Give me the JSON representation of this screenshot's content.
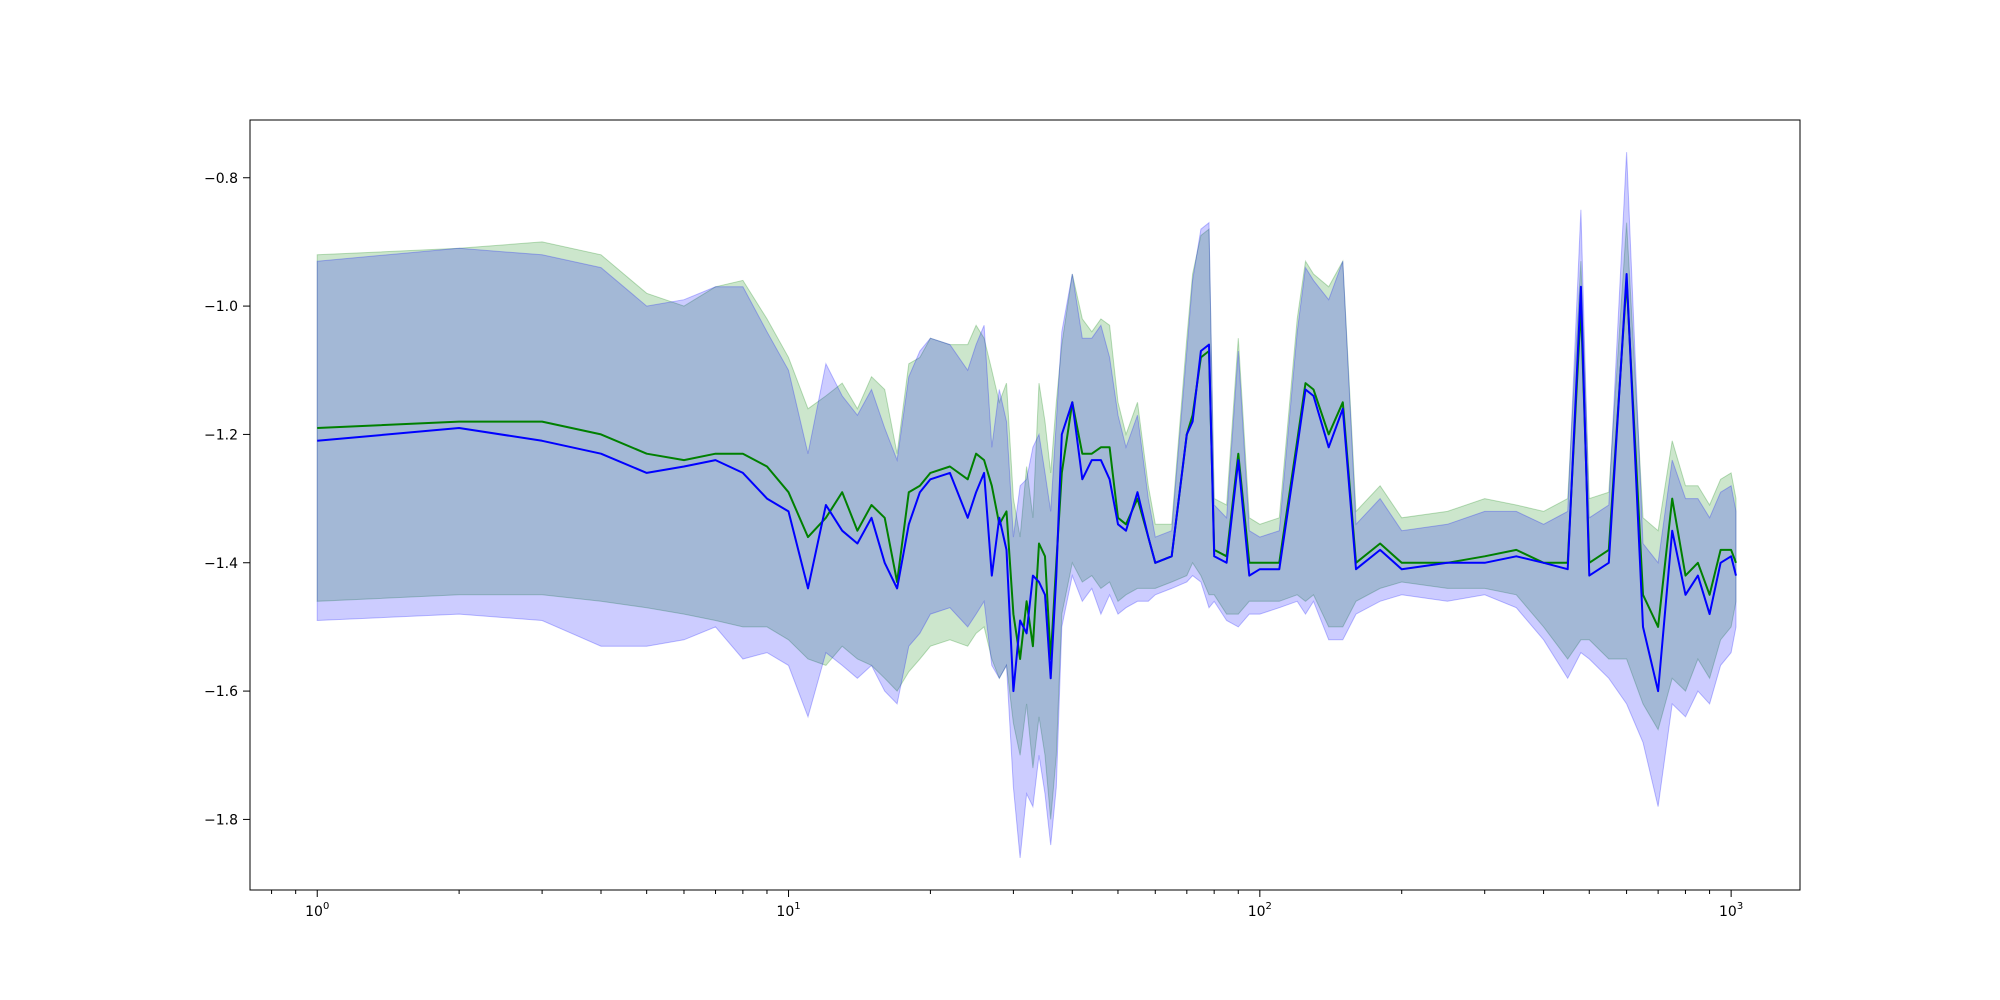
{
  "chart_data": {
    "type": "line",
    "title": "",
    "xlabel": "",
    "ylabel": "",
    "xscale": "log",
    "xlim": [
      0.72,
      1400
    ],
    "ylim": [
      -1.91,
      -0.71
    ],
    "grid": false,
    "x_ticks": [
      {
        "value": 1,
        "base": "10",
        "exp": "0"
      },
      {
        "value": 10,
        "base": "10",
        "exp": "1"
      },
      {
        "value": 100,
        "base": "10",
        "exp": "2"
      },
      {
        "value": 1000,
        "base": "10",
        "exp": "3"
      }
    ],
    "y_ticks": [
      {
        "value": -0.8,
        "label": "−0.8"
      },
      {
        "value": -1.0,
        "label": "−1.0"
      },
      {
        "value": -1.2,
        "label": "−1.2"
      },
      {
        "value": -1.4,
        "label": "−1.4"
      },
      {
        "value": -1.6,
        "label": "−1.6"
      },
      {
        "value": -1.8,
        "label": "−1.8"
      }
    ],
    "series": [
      {
        "color": "#008000",
        "band_color": "#008000",
        "band_opacity": 0.2,
        "x": [
          1,
          2,
          3,
          4,
          5,
          6,
          7,
          8,
          9,
          10,
          11,
          12,
          13,
          14,
          15,
          16,
          17,
          18,
          19,
          20,
          22,
          24,
          25,
          26,
          27,
          28,
          29,
          30,
          31,
          32,
          33,
          34,
          35,
          36,
          37,
          38,
          40,
          42,
          44,
          46,
          48,
          50,
          52,
          55,
          58,
          60,
          65,
          70,
          72,
          75,
          78,
          80,
          85,
          90,
          95,
          100,
          110,
          120,
          125,
          130,
          140,
          150,
          160,
          180,
          200,
          250,
          300,
          350,
          400,
          450,
          480,
          500,
          550,
          600,
          650,
          700,
          750,
          800,
          850,
          900,
          950,
          1000,
          1024
        ],
        "y": [
          -1.19,
          -1.18,
          -1.18,
          -1.2,
          -1.23,
          -1.24,
          -1.23,
          -1.23,
          -1.25,
          -1.29,
          -1.36,
          -1.33,
          -1.29,
          -1.35,
          -1.31,
          -1.33,
          -1.43,
          -1.29,
          -1.28,
          -1.26,
          -1.25,
          -1.27,
          -1.23,
          -1.24,
          -1.28,
          -1.34,
          -1.32,
          -1.48,
          -1.55,
          -1.46,
          -1.53,
          -1.37,
          -1.39,
          -1.55,
          -1.4,
          -1.26,
          -1.15,
          -1.23,
          -1.23,
          -1.22,
          -1.22,
          -1.33,
          -1.34,
          -1.3,
          -1.36,
          -1.4,
          -1.39,
          -1.2,
          -1.17,
          -1.08,
          -1.07,
          -1.38,
          -1.39,
          -1.23,
          -1.4,
          -1.4,
          -1.4,
          -1.21,
          -1.12,
          -1.13,
          -1.2,
          -1.15,
          -1.4,
          -1.37,
          -1.4,
          -1.4,
          -1.39,
          -1.38,
          -1.4,
          -1.4,
          -1.0,
          -1.4,
          -1.38,
          -0.96,
          -1.45,
          -1.5,
          -1.3,
          -1.42,
          -1.4,
          -1.45,
          -1.38,
          -1.38,
          -1.4
        ],
        "lower": [
          -1.46,
          -1.45,
          -1.45,
          -1.46,
          -1.47,
          -1.48,
          -1.49,
          -1.5,
          -1.5,
          -1.52,
          -1.55,
          -1.56,
          -1.53,
          -1.55,
          -1.56,
          -1.58,
          -1.6,
          -1.57,
          -1.55,
          -1.53,
          -1.52,
          -1.53,
          -1.51,
          -1.5,
          -1.55,
          -1.58,
          -1.56,
          -1.65,
          -1.7,
          -1.62,
          -1.72,
          -1.64,
          -1.7,
          -1.8,
          -1.7,
          -1.48,
          -1.4,
          -1.43,
          -1.42,
          -1.44,
          -1.43,
          -1.46,
          -1.45,
          -1.44,
          -1.44,
          -1.44,
          -1.43,
          -1.42,
          -1.4,
          -1.42,
          -1.45,
          -1.45,
          -1.48,
          -1.48,
          -1.46,
          -1.46,
          -1.46,
          -1.45,
          -1.46,
          -1.45,
          -1.5,
          -1.5,
          -1.46,
          -1.44,
          -1.43,
          -1.44,
          -1.44,
          -1.45,
          -1.5,
          -1.55,
          -1.52,
          -1.52,
          -1.55,
          -1.55,
          -1.62,
          -1.66,
          -1.58,
          -1.6,
          -1.55,
          -1.58,
          -1.52,
          -1.5,
          -1.46
        ],
        "upper": [
          -0.92,
          -0.91,
          -0.9,
          -0.92,
          -0.98,
          -1.0,
          -0.97,
          -0.96,
          -1.02,
          -1.08,
          -1.16,
          -1.14,
          -1.12,
          -1.16,
          -1.11,
          -1.13,
          -1.23,
          -1.09,
          -1.08,
          -1.05,
          -1.06,
          -1.06,
          -1.03,
          -1.05,
          -1.1,
          -1.15,
          -1.12,
          -1.3,
          -1.36,
          -1.25,
          -1.33,
          -1.12,
          -1.18,
          -1.26,
          -1.15,
          -1.06,
          -0.95,
          -1.02,
          -1.04,
          -1.02,
          -1.03,
          -1.15,
          -1.2,
          -1.15,
          -1.28,
          -1.34,
          -1.34,
          -1.05,
          -0.95,
          -0.89,
          -0.88,
          -1.3,
          -1.31,
          -1.05,
          -1.33,
          -1.34,
          -1.33,
          -1.02,
          -0.93,
          -0.95,
          -0.97,
          -0.93,
          -1.32,
          -1.28,
          -1.33,
          -1.32,
          -1.3,
          -1.31,
          -1.32,
          -1.3,
          -0.93,
          -1.3,
          -1.29,
          -0.87,
          -1.33,
          -1.35,
          -1.21,
          -1.28,
          -1.28,
          -1.31,
          -1.27,
          -1.26,
          -1.3
        ]
      },
      {
        "color": "#0000ff",
        "band_color": "#0000ff",
        "band_opacity": 0.2,
        "x": [
          1,
          2,
          3,
          4,
          5,
          6,
          7,
          8,
          9,
          10,
          11,
          12,
          13,
          14,
          15,
          16,
          17,
          18,
          19,
          20,
          22,
          24,
          25,
          26,
          27,
          28,
          29,
          30,
          31,
          32,
          33,
          34,
          35,
          36,
          37,
          38,
          40,
          42,
          44,
          46,
          48,
          50,
          52,
          55,
          58,
          60,
          65,
          70,
          72,
          75,
          78,
          80,
          85,
          90,
          95,
          100,
          110,
          120,
          125,
          130,
          140,
          150,
          160,
          180,
          200,
          250,
          300,
          350,
          400,
          450,
          480,
          500,
          550,
          600,
          650,
          700,
          750,
          800,
          850,
          900,
          950,
          1000,
          1024
        ],
        "y": [
          -1.21,
          -1.19,
          -1.21,
          -1.23,
          -1.26,
          -1.25,
          -1.24,
          -1.26,
          -1.3,
          -1.32,
          -1.44,
          -1.31,
          -1.35,
          -1.37,
          -1.33,
          -1.4,
          -1.44,
          -1.34,
          -1.29,
          -1.27,
          -1.26,
          -1.33,
          -1.29,
          -1.26,
          -1.42,
          -1.33,
          -1.38,
          -1.6,
          -1.49,
          -1.51,
          -1.42,
          -1.43,
          -1.45,
          -1.58,
          -1.42,
          -1.2,
          -1.15,
          -1.27,
          -1.24,
          -1.24,
          -1.27,
          -1.34,
          -1.35,
          -1.29,
          -1.36,
          -1.4,
          -1.39,
          -1.2,
          -1.18,
          -1.07,
          -1.06,
          -1.39,
          -1.4,
          -1.24,
          -1.42,
          -1.41,
          -1.41,
          -1.22,
          -1.13,
          -1.14,
          -1.22,
          -1.16,
          -1.41,
          -1.38,
          -1.41,
          -1.4,
          -1.4,
          -1.39,
          -1.4,
          -1.41,
          -0.97,
          -1.42,
          -1.4,
          -0.95,
          -1.5,
          -1.6,
          -1.35,
          -1.45,
          -1.42,
          -1.48,
          -1.4,
          -1.39,
          -1.42
        ],
        "lower": [
          -1.49,
          -1.48,
          -1.49,
          -1.53,
          -1.53,
          -1.52,
          -1.5,
          -1.55,
          -1.54,
          -1.56,
          -1.64,
          -1.54,
          -1.56,
          -1.58,
          -1.56,
          -1.6,
          -1.62,
          -1.53,
          -1.51,
          -1.48,
          -1.47,
          -1.5,
          -1.48,
          -1.46,
          -1.56,
          -1.58,
          -1.56,
          -1.75,
          -1.86,
          -1.76,
          -1.78,
          -1.7,
          -1.76,
          -1.84,
          -1.75,
          -1.5,
          -1.42,
          -1.46,
          -1.44,
          -1.48,
          -1.45,
          -1.48,
          -1.47,
          -1.46,
          -1.46,
          -1.45,
          -1.44,
          -1.43,
          -1.42,
          -1.43,
          -1.47,
          -1.46,
          -1.49,
          -1.5,
          -1.48,
          -1.48,
          -1.47,
          -1.46,
          -1.48,
          -1.46,
          -1.52,
          -1.52,
          -1.48,
          -1.46,
          -1.45,
          -1.46,
          -1.45,
          -1.47,
          -1.52,
          -1.58,
          -1.54,
          -1.55,
          -1.58,
          -1.62,
          -1.68,
          -1.78,
          -1.62,
          -1.64,
          -1.6,
          -1.62,
          -1.56,
          -1.54,
          -1.5
        ],
        "upper": [
          -0.93,
          -0.91,
          -0.92,
          -0.94,
          -1.0,
          -0.99,
          -0.97,
          -0.97,
          -1.04,
          -1.1,
          -1.23,
          -1.09,
          -1.14,
          -1.17,
          -1.13,
          -1.19,
          -1.24,
          -1.11,
          -1.07,
          -1.05,
          -1.06,
          -1.1,
          -1.06,
          -1.03,
          -1.22,
          -1.13,
          -1.18,
          -1.36,
          -1.28,
          -1.27,
          -1.22,
          -1.2,
          -1.26,
          -1.32,
          -1.18,
          -1.04,
          -0.95,
          -1.05,
          -1.05,
          -1.03,
          -1.08,
          -1.17,
          -1.22,
          -1.17,
          -1.3,
          -1.36,
          -1.35,
          -1.07,
          -0.96,
          -0.88,
          -0.87,
          -1.31,
          -1.33,
          -1.07,
          -1.35,
          -1.36,
          -1.35,
          -1.04,
          -0.94,
          -0.96,
          -0.99,
          -0.93,
          -1.34,
          -1.3,
          -1.35,
          -1.34,
          -1.32,
          -1.32,
          -1.34,
          -1.32,
          -0.85,
          -1.33,
          -1.31,
          -0.76,
          -1.37,
          -1.4,
          -1.24,
          -1.3,
          -1.3,
          -1.33,
          -1.29,
          -1.28,
          -1.32
        ]
      }
    ]
  }
}
